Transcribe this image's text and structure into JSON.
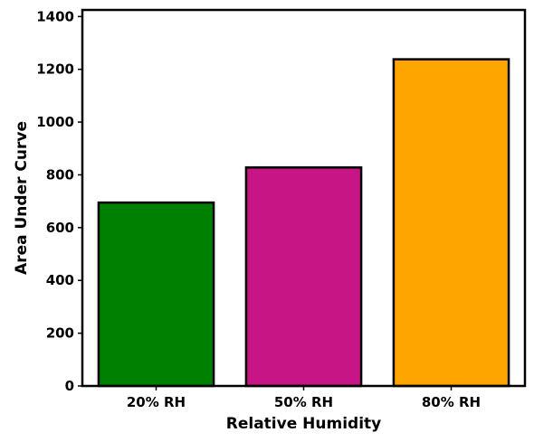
{
  "chart_data": {
    "type": "bar",
    "categories": [
      "20% RH",
      "50% RH",
      "80% RH"
    ],
    "values": [
      695,
      828,
      1238
    ],
    "colors": [
      "#008000",
      "#c71585",
      "#ffa500"
    ],
    "xlabel": "Relative Humidity",
    "ylabel": "Area Under Curve",
    "ylim": [
      0,
      1425
    ],
    "yticks": [
      0,
      200,
      400,
      600,
      800,
      1000,
      1200,
      1400
    ],
    "grid": false
  }
}
